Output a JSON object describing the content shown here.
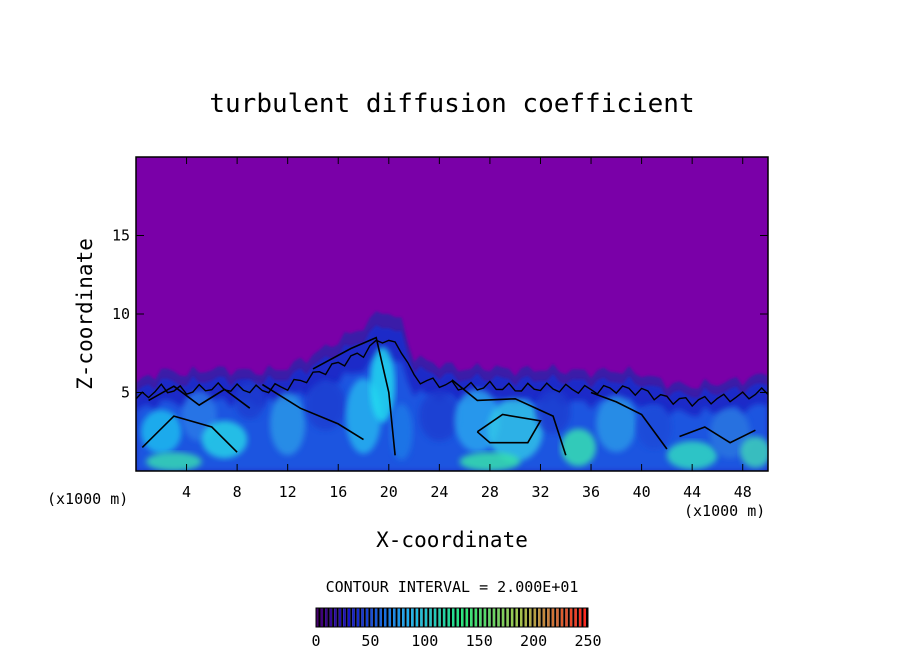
{
  "chart_data": {
    "type": "heatmap",
    "title": "turbulent diffusion coefficient",
    "xlabel": "X-coordinate",
    "ylabel": "Z-coordinate",
    "x_unit_label": "(x1000 m)",
    "z_unit_label": "(x1000 m)",
    "xlim": [
      0,
      50
    ],
    "ylim": [
      0,
      20
    ],
    "x_ticks": [
      4,
      8,
      12,
      16,
      20,
      24,
      28,
      32,
      36,
      40,
      44,
      48
    ],
    "y_ticks": [
      5,
      10,
      15
    ],
    "contour_interval_text": "CONTOUR INTERVAL = 2.000E+01",
    "colorbar": {
      "min": 0,
      "max": 250,
      "ticks": [
        0,
        50,
        100,
        150,
        200,
        250
      ]
    },
    "background_color": "#7a00a8",
    "turbulent_layer_top": [
      [
        0,
        5.6
      ],
      [
        2,
        6.4
      ],
      [
        4,
        6.2
      ],
      [
        6,
        6.5
      ],
      [
        8,
        6.4
      ],
      [
        10,
        6.3
      ],
      [
        12,
        6.6
      ],
      [
        14,
        7.4
      ],
      [
        16,
        8.3
      ],
      [
        18,
        9.2
      ],
      [
        19.5,
        10.3
      ],
      [
        21,
        9.5
      ],
      [
        22,
        7.2
      ],
      [
        24,
        6.8
      ],
      [
        26,
        6.5
      ],
      [
        28,
        6.6
      ],
      [
        30,
        6.4
      ],
      [
        32,
        6.5
      ],
      [
        34,
        6.4
      ],
      [
        36,
        6.3
      ],
      [
        38,
        6.4
      ],
      [
        40,
        6.2
      ],
      [
        42,
        5.6
      ],
      [
        44,
        5.4
      ],
      [
        46,
        5.6
      ],
      [
        48,
        5.8
      ],
      [
        50,
        6.2
      ]
    ]
  }
}
